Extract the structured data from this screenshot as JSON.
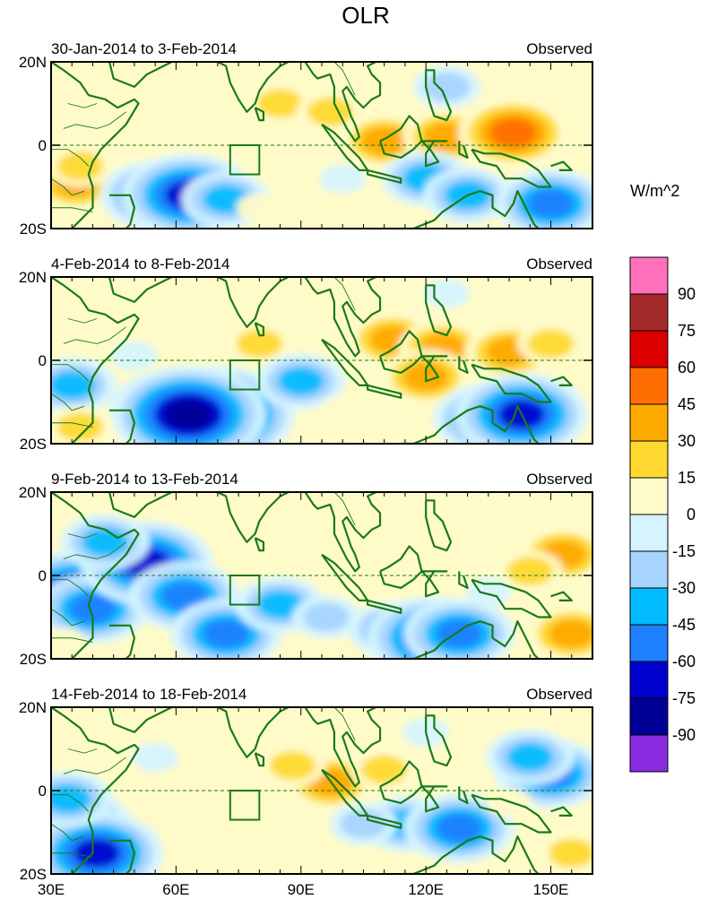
{
  "chart_data": {
    "type": "heatmap",
    "title": "OLR",
    "units_label": "W/m^2",
    "x_ticks": [
      {
        "value": 30,
        "label": "30E"
      },
      {
        "value": 60,
        "label": "60E"
      },
      {
        "value": 90,
        "label": "90E"
      },
      {
        "value": 120,
        "label": "120E"
      },
      {
        "value": 150,
        "label": "150E"
      }
    ],
    "y_ticks": [
      {
        "value": 20,
        "label": "20N"
      },
      {
        "value": 0,
        "label": "0"
      },
      {
        "value": -20,
        "label": "20S"
      }
    ],
    "xlim": [
      30,
      160
    ],
    "ylim": [
      -20,
      20
    ],
    "equator_dashed": true,
    "box_region": {
      "lon": [
        73,
        80
      ],
      "lat": [
        -7,
        0
      ]
    },
    "panels": [
      {
        "period": "30-Jan-2014 to 3-Feb-2014",
        "label": "Observed",
        "anomalies": [
          {
            "lon": 36,
            "lat": -9,
            "value": 45
          },
          {
            "lon": 37,
            "lat": -5,
            "value": 30
          },
          {
            "lon": 55,
            "lat": -12,
            "value": -60
          },
          {
            "lon": 63,
            "lat": -12,
            "value": -75
          },
          {
            "lon": 72,
            "lat": -13,
            "value": -45
          },
          {
            "lon": 50,
            "lat": 2,
            "value": 15
          },
          {
            "lon": 85,
            "lat": 10,
            "value": 30
          },
          {
            "lon": 97,
            "lat": 8,
            "value": 30
          },
          {
            "lon": 110,
            "lat": 1,
            "value": 45
          },
          {
            "lon": 125,
            "lat": 2,
            "value": 45
          },
          {
            "lon": 141,
            "lat": 3,
            "value": 60
          },
          {
            "lon": 138,
            "lat": 15,
            "value": 15
          },
          {
            "lon": 120,
            "lat": -8,
            "value": -45
          },
          {
            "lon": 130,
            "lat": -12,
            "value": -45
          },
          {
            "lon": 150,
            "lat": -14,
            "value": -60
          },
          {
            "lon": 80,
            "lat": -15,
            "value": 15
          },
          {
            "lon": 100,
            "lat": -8,
            "value": -15
          },
          {
            "lon": 95,
            "lat": 16,
            "value": 15
          },
          {
            "lon": 125,
            "lat": 14,
            "value": -30
          }
        ]
      },
      {
        "period": "4-Feb-2014 to 8-Feb-2014",
        "label": "Observed",
        "anomalies": [
          {
            "lon": 60,
            "lat": -12,
            "value": -75
          },
          {
            "lon": 70,
            "lat": -13,
            "value": -90
          },
          {
            "lon": 63,
            "lat": -13,
            "value": -90
          },
          {
            "lon": 80,
            "lat": 4,
            "value": 30
          },
          {
            "lon": 85,
            "lat": 12,
            "value": 15
          },
          {
            "lon": 112,
            "lat": 5,
            "value": 45
          },
          {
            "lon": 124,
            "lat": 3,
            "value": 45
          },
          {
            "lon": 140,
            "lat": 2,
            "value": 45
          },
          {
            "lon": 120,
            "lat": -4,
            "value": 45
          },
          {
            "lon": 150,
            "lat": 4,
            "value": 30
          },
          {
            "lon": 135,
            "lat": -14,
            "value": -60
          },
          {
            "lon": 143,
            "lat": -13,
            "value": -75
          },
          {
            "lon": 90,
            "lat": -5,
            "value": -45
          },
          {
            "lon": 35,
            "lat": -6,
            "value": -45
          },
          {
            "lon": 37,
            "lat": -16,
            "value": 30
          },
          {
            "lon": 100,
            "lat": -12,
            "value": 15
          },
          {
            "lon": 50,
            "lat": 1,
            "value": -15
          },
          {
            "lon": 125,
            "lat": 16,
            "value": -15
          }
        ]
      },
      {
        "period": "9-Feb-2014 to 13-Feb-2014",
        "label": "Observed",
        "anomalies": [
          {
            "lon": 36,
            "lat": -4,
            "value": -75
          },
          {
            "lon": 40,
            "lat": -8,
            "value": -60
          },
          {
            "lon": 53,
            "lat": 3,
            "value": -75
          },
          {
            "lon": 62,
            "lat": -5,
            "value": -60
          },
          {
            "lon": 72,
            "lat": -14,
            "value": -60
          },
          {
            "lon": 43,
            "lat": 8,
            "value": -45
          },
          {
            "lon": 85,
            "lat": -7,
            "value": -45
          },
          {
            "lon": 96,
            "lat": -10,
            "value": -30
          },
          {
            "lon": 112,
            "lat": -13,
            "value": -45
          },
          {
            "lon": 122,
            "lat": -15,
            "value": -75
          },
          {
            "lon": 128,
            "lat": -14,
            "value": -60
          },
          {
            "lon": 153,
            "lat": 5,
            "value": 45
          },
          {
            "lon": 145,
            "lat": 1,
            "value": 30
          },
          {
            "lon": 155,
            "lat": -14,
            "value": 45
          },
          {
            "lon": 88,
            "lat": 8,
            "value": 15
          },
          {
            "lon": 110,
            "lat": 8,
            "value": 15
          },
          {
            "lon": 70,
            "lat": 12,
            "value": 15
          },
          {
            "lon": 33,
            "lat": -16,
            "value": 15
          },
          {
            "lon": 135,
            "lat": -4,
            "value": -15
          }
        ]
      },
      {
        "period": "14-Feb-2014 to 18-Feb-2014",
        "label": "Observed",
        "anomalies": [
          {
            "lon": 36,
            "lat": -8,
            "value": -60
          },
          {
            "lon": 41,
            "lat": -15,
            "value": -75
          },
          {
            "lon": 34,
            "lat": -2,
            "value": -45
          },
          {
            "lon": 97,
            "lat": 2,
            "value": 45
          },
          {
            "lon": 88,
            "lat": 6,
            "value": 30
          },
          {
            "lon": 110,
            "lat": 5,
            "value": 30
          },
          {
            "lon": 115,
            "lat": -8,
            "value": -45
          },
          {
            "lon": 128,
            "lat": -9,
            "value": -60
          },
          {
            "lon": 105,
            "lat": -8,
            "value": -30
          },
          {
            "lon": 150,
            "lat": 4,
            "value": -60
          },
          {
            "lon": 145,
            "lat": 8,
            "value": -45
          },
          {
            "lon": 155,
            "lat": -15,
            "value": 30
          },
          {
            "lon": 65,
            "lat": -9,
            "value": 15
          },
          {
            "lon": 55,
            "lat": 8,
            "value": -15
          },
          {
            "lon": 80,
            "lat": -12,
            "value": 15
          },
          {
            "lon": 140,
            "lat": -3,
            "value": 15
          },
          {
            "lon": 120,
            "lat": 14,
            "value": -15
          }
        ]
      }
    ],
    "colorbar": {
      "labels": [
        "90",
        "75",
        "60",
        "45",
        "30",
        "15",
        "0",
        "-15",
        "-30",
        "-45",
        "-60",
        "-75",
        "-90"
      ],
      "colors": [
        "#ff70bb",
        "#a52a2a",
        "#dc0000",
        "#ff6e00",
        "#ffaa00",
        "#ffd92f",
        "#fffbc8",
        "#d6f4ff",
        "#a6d4ff",
        "#00bbff",
        "#1e7fff",
        "#0000cd",
        "#000096",
        "#8a2be2"
      ]
    },
    "coastline_color": "#1a7a1a",
    "border_color": "#1a7a1a"
  }
}
